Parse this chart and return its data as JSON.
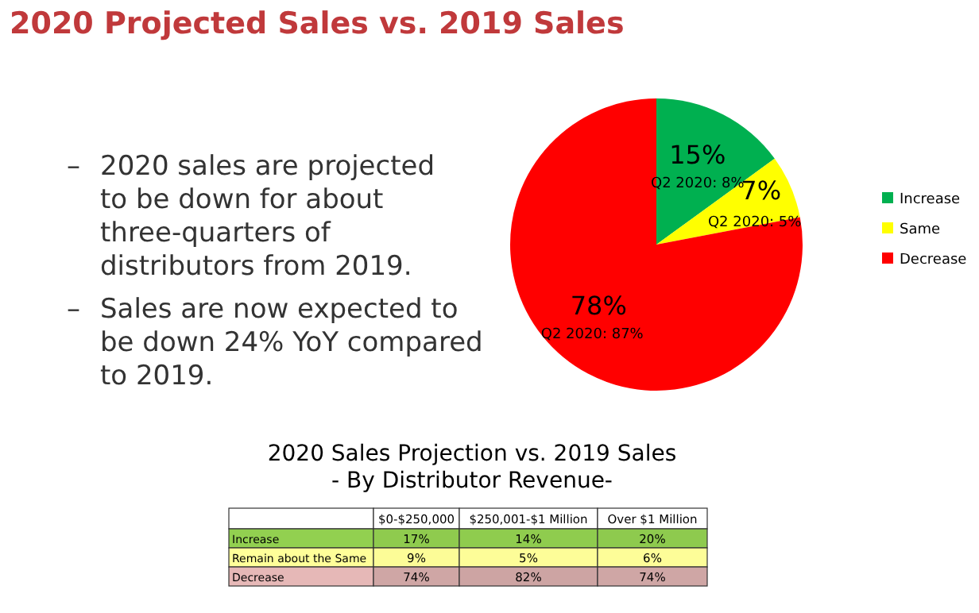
{
  "chart_data": [
    {
      "type": "pie",
      "title": "2020 Projected Sales vs. 2019 Sales",
      "categories": [
        "Increase",
        "Same",
        "Decrease"
      ],
      "values": [
        15,
        7,
        78
      ],
      "colors": [
        "#00b050",
        "#ffff00",
        "#ff0000"
      ],
      "value_labels": [
        "15%",
        "7%",
        "78%"
      ],
      "legend": "right",
      "annotations": [
        {
          "text": "Q2 2020: 8%",
          "x": "Increase"
        },
        {
          "text": "Q2 2020: 5%",
          "x": "Same"
        },
        {
          "text": "Q2 2020: 87%",
          "x": "Decrease"
        },
        "– 2020 sales are projected to be down for about three-quarters of distributors from 2019.",
        "– Sales are now expected to be down 24% YoY compared to 2019."
      ]
    },
    {
      "type": "heatmap",
      "title": "2020 Sales Projection vs. 2019 Sales",
      "subtitle": "- By Distributor Revenue-",
      "categories": [
        "$0-$250,000",
        "$250,001-$1 Million",
        "Over $1 Million"
      ],
      "y_categories": [
        "Increase",
        "Remain about the Same",
        "Decrease"
      ],
      "cells": [
        [
          17,
          14,
          20
        ],
        [
          9,
          5,
          6
        ],
        [
          74,
          82,
          74
        ]
      ],
      "cell_labels": [
        [
          "17%",
          "14%",
          "20%"
        ],
        [
          "9%",
          "5%",
          "6%"
        ],
        [
          "74%",
          "82%",
          "74%"
        ]
      ],
      "colors": [
        "#92d050",
        "#ffff99",
        "#e6b8b7"
      ]
    }
  ]
}
